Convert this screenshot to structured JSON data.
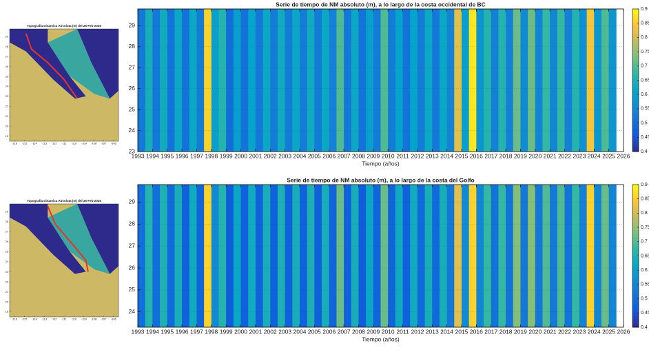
{
  "chart_data": [
    {
      "type": "map",
      "title": "Topografía Dinamica Absoluta  (m) del 26-Feb-2025",
      "xlim": [
        -116.5,
        -105.5
      ],
      "ylim": [
        18.5,
        29.8
      ],
      "xticks": [
        -116,
        -115,
        -114,
        -113,
        -112,
        -111,
        -110,
        -109,
        -108,
        -107,
        -106
      ],
      "yticks": [
        19,
        20,
        21,
        22,
        23,
        24,
        25,
        26,
        27,
        28,
        29
      ],
      "coast": "pacific",
      "coast_color": "#e8322a"
    },
    {
      "type": "heatmap",
      "title": "Serie de tiempo de NM absoluto (m), a lo largo de la costa occidental de BC",
      "xlabel": "Tiempo (años)",
      "colormap": "parula",
      "clim": [
        0.4,
        0.9
      ],
      "cticks": [
        0.4,
        0.45,
        0.5,
        0.55,
        0.6,
        0.65,
        0.7,
        0.75,
        0.8,
        0.85,
        0.9
      ],
      "xlim": [
        1993,
        2026
      ],
      "xticks": [
        1993,
        1994,
        1995,
        1996,
        1997,
        1998,
        1999,
        2000,
        2001,
        2002,
        2003,
        2004,
        2005,
        2006,
        2007,
        2008,
        2009,
        2010,
        2011,
        2012,
        2013,
        2014,
        2015,
        2016,
        2017,
        2018,
        2019,
        2020,
        2021,
        2022,
        2023,
        2024,
        2025,
        2026
      ],
      "ylim": [
        23,
        29.8
      ],
      "yticks": [
        23,
        24,
        25,
        26,
        27,
        28,
        29
      ],
      "x": [
        1993.25,
        1993.75,
        1994.25,
        1994.75,
        1995.25,
        1995.75,
        1996.25,
        1996.75,
        1997.25,
        1997.75,
        1998.25,
        1998.75,
        1999.25,
        1999.75,
        2000.25,
        2000.75,
        2001.25,
        2001.75,
        2002.25,
        2002.75,
        2003.25,
        2003.75,
        2004.25,
        2004.75,
        2005.25,
        2005.75,
        2006.25,
        2006.75,
        2007.25,
        2007.75,
        2008.25,
        2008.75,
        2009.25,
        2009.75,
        2010.25,
        2010.75,
        2011.25,
        2011.75,
        2012.25,
        2012.75,
        2013.25,
        2013.75,
        2014.25,
        2014.75,
        2015.25,
        2015.75,
        2016.25,
        2016.75,
        2017.25,
        2017.75,
        2018.25,
        2018.75,
        2019.25,
        2019.75,
        2020.25,
        2020.75,
        2021.25,
        2021.75,
        2022.25,
        2022.75,
        2023.25,
        2023.75,
        2024.25,
        2024.75,
        2025.25
      ],
      "values": [
        0.52,
        0.64,
        0.52,
        0.63,
        0.51,
        0.62,
        0.51,
        0.62,
        0.53,
        0.86,
        0.6,
        0.66,
        0.5,
        0.6,
        0.51,
        0.61,
        0.52,
        0.62,
        0.53,
        0.63,
        0.53,
        0.62,
        0.53,
        0.63,
        0.53,
        0.62,
        0.54,
        0.7,
        0.52,
        0.62,
        0.51,
        0.6,
        0.53,
        0.7,
        0.53,
        0.61,
        0.51,
        0.61,
        0.53,
        0.62,
        0.52,
        0.62,
        0.55,
        0.82,
        0.6,
        0.88,
        0.58,
        0.66,
        0.54,
        0.66,
        0.54,
        0.72,
        0.56,
        0.72,
        0.55,
        0.68,
        0.55,
        0.68,
        0.54,
        0.66,
        0.57,
        0.84,
        0.58,
        0.7,
        0.58
      ]
    },
    {
      "type": "map",
      "title": "Topografía Dinamica Absoluta  (m) del 26-Feb-2025",
      "xlim": [
        -116.5,
        -105.5
      ],
      "ylim": [
        18.5,
        29.8
      ],
      "xticks": [
        -116,
        -115,
        -114,
        -113,
        -112,
        -111,
        -110,
        -109,
        -108,
        -107,
        -106
      ],
      "yticks": [
        19,
        20,
        21,
        22,
        23,
        24,
        25,
        26,
        27,
        28,
        29
      ],
      "coast": "gulf",
      "coast_color": "#e8322a"
    },
    {
      "type": "heatmap",
      "title": "Serie de tiempo de NM absoluto (m), a lo largo de la costa del Golfo",
      "xlabel": "Tiempo (años)",
      "colormap": "parula",
      "clim": [
        0.4,
        0.9
      ],
      "cticks": [
        0.4,
        0.45,
        0.5,
        0.55,
        0.6,
        0.65,
        0.7,
        0.75,
        0.8,
        0.85,
        0.9
      ],
      "xlim": [
        1993,
        2026
      ],
      "xticks": [
        1993,
        1994,
        1995,
        1996,
        1997,
        1998,
        1999,
        2000,
        2001,
        2002,
        2003,
        2004,
        2005,
        2006,
        2007,
        2008,
        2009,
        2010,
        2011,
        2012,
        2013,
        2014,
        2015,
        2016,
        2017,
        2018,
        2019,
        2020,
        2021,
        2022,
        2023,
        2024,
        2025,
        2026
      ],
      "ylim": [
        23.3,
        29.8
      ],
      "yticks": [
        24,
        25,
        26,
        27,
        28,
        29
      ],
      "x": [
        1993.25,
        1993.75,
        1994.25,
        1994.75,
        1995.25,
        1995.75,
        1996.25,
        1996.75,
        1997.25,
        1997.75,
        1998.25,
        1998.75,
        1999.25,
        1999.75,
        2000.25,
        2000.75,
        2001.25,
        2001.75,
        2002.25,
        2002.75,
        2003.25,
        2003.75,
        2004.25,
        2004.75,
        2005.25,
        2005.75,
        2006.25,
        2006.75,
        2007.25,
        2007.75,
        2008.25,
        2008.75,
        2009.25,
        2009.75,
        2010.25,
        2010.75,
        2011.25,
        2011.75,
        2012.25,
        2012.75,
        2013.25,
        2013.75,
        2014.25,
        2014.75,
        2015.25,
        2015.75,
        2016.25,
        2016.75,
        2017.25,
        2017.75,
        2018.25,
        2018.75,
        2019.25,
        2019.75,
        2020.25,
        2020.75,
        2021.25,
        2021.75,
        2022.25,
        2022.75,
        2023.25,
        2023.75,
        2024.25,
        2024.75,
        2025.25
      ],
      "values": [
        0.5,
        0.66,
        0.5,
        0.65,
        0.49,
        0.64,
        0.47,
        0.63,
        0.48,
        0.86,
        0.56,
        0.66,
        0.46,
        0.62,
        0.47,
        0.63,
        0.47,
        0.64,
        0.47,
        0.65,
        0.47,
        0.64,
        0.47,
        0.65,
        0.47,
        0.64,
        0.48,
        0.72,
        0.47,
        0.64,
        0.46,
        0.62,
        0.48,
        0.72,
        0.48,
        0.63,
        0.47,
        0.63,
        0.49,
        0.64,
        0.49,
        0.64,
        0.52,
        0.82,
        0.56,
        0.86,
        0.55,
        0.68,
        0.51,
        0.68,
        0.51,
        0.74,
        0.52,
        0.74,
        0.52,
        0.7,
        0.52,
        0.7,
        0.51,
        0.68,
        0.54,
        0.86,
        0.55,
        0.72,
        0.55
      ]
    }
  ]
}
